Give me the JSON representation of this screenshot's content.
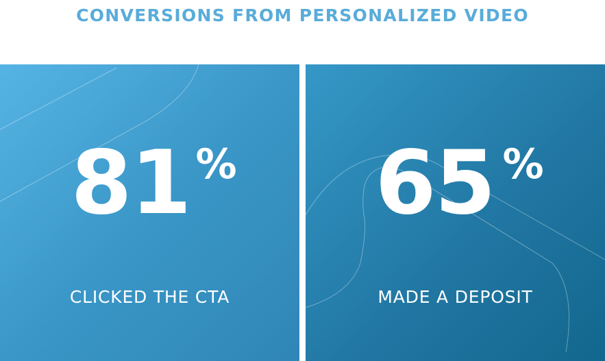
{
  "header": {
    "title": "CONVERSIONS FROM PERSONALIZED VIDEO"
  },
  "stats": [
    {
      "number": "81",
      "unit": "%",
      "label": "CLICKED THE CTA"
    },
    {
      "number": "65",
      "unit": "%",
      "label": "MADE A DEPOSIT"
    }
  ],
  "colors": {
    "title": "#59acd9",
    "left_panel_start": "#56b4e5",
    "left_panel_end": "#2f86b6",
    "right_panel_start": "#3598c7",
    "right_panel_end": "#11678d",
    "text": "#ffffff"
  }
}
